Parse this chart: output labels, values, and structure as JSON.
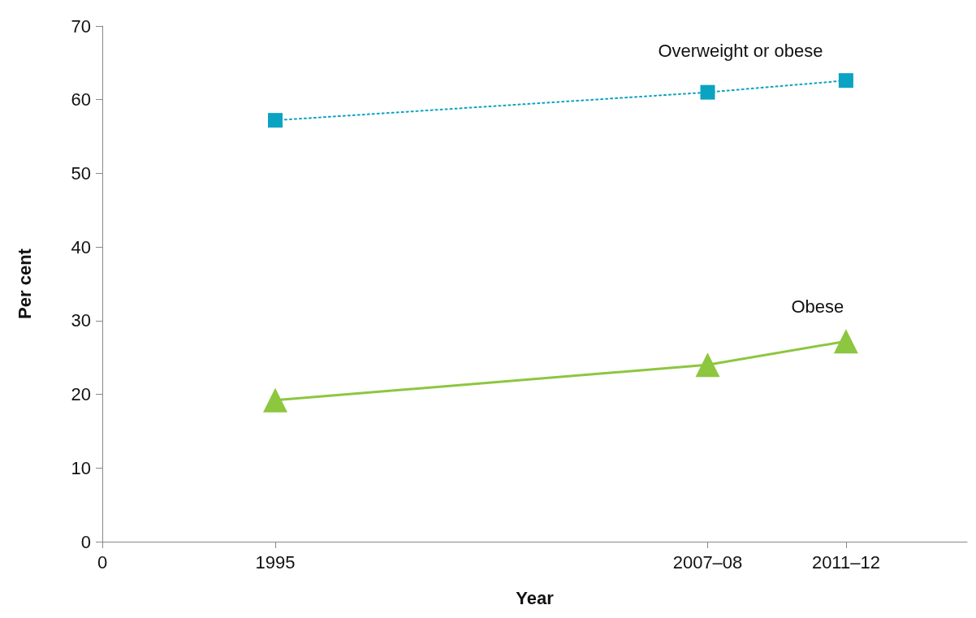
{
  "chart_data": {
    "type": "line",
    "xlabel": "Year",
    "ylabel": "Per cent",
    "categories": [
      "0",
      null,
      null,
      null,
      null,
      null,
      null,
      null,
      null,
      null,
      "1995",
      null,
      null,
      null,
      null,
      null,
      null,
      null,
      null,
      null,
      null,
      null,
      null,
      null,
      null,
      null,
      null,
      null,
      null,
      null,
      null,
      null,
      null,
      null,
      null,
      "2007–08",
      null,
      null,
      null,
      null,
      null,
      null,
      null,
      "2011–12",
      null,
      null,
      null,
      null,
      null,
      null,
      null
    ],
    "ylim": [
      0,
      70
    ],
    "yticks": [
      0,
      10,
      20,
      30,
      40,
      50,
      60,
      70
    ],
    "grid": false,
    "legend": false,
    "series": [
      {
        "name": "Overweight or obese",
        "color": "#0aa3c2",
        "values": [
          null,
          null,
          null,
          null,
          null,
          null,
          null,
          null,
          null,
          null,
          57.2,
          null,
          null,
          null,
          null,
          null,
          null,
          null,
          null,
          null,
          null,
          null,
          null,
          null,
          null,
          null,
          null,
          null,
          null,
          null,
          null,
          null,
          null,
          null,
          null,
          61.0,
          null,
          null,
          null,
          null,
          null,
          null,
          null,
          62.6,
          null,
          null,
          null,
          null,
          null,
          null,
          null
        ],
        "marker": "square",
        "line_style": "dotted"
      },
      {
        "name": "Obese",
        "color": "#8dc63f",
        "values": [
          null,
          null,
          null,
          null,
          null,
          null,
          null,
          null,
          null,
          null,
          19.2,
          null,
          null,
          null,
          null,
          null,
          null,
          null,
          null,
          null,
          null,
          null,
          null,
          null,
          null,
          null,
          null,
          null,
          null,
          null,
          null,
          null,
          null,
          null,
          null,
          24.0,
          null,
          null,
          null,
          null,
          null,
          null,
          null,
          27.2,
          null,
          null,
          null,
          null,
          null,
          null,
          null
        ],
        "marker": "triangle",
        "line_style": "solid"
      }
    ]
  }
}
